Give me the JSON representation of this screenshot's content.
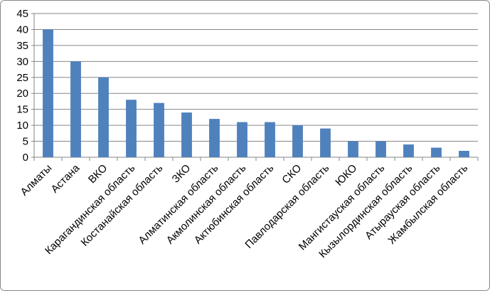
{
  "chart_data": {
    "type": "bar",
    "categories": [
      "Алматы",
      "Астана",
      "ВКО",
      "Карагандинская область",
      "Костанайская область",
      "ЗКО",
      "Алматинская область",
      "Акмолинская область",
      "Актюбинская область",
      "СКО",
      "Павлодарская область",
      "ЮКО",
      "Мангистауская область",
      "Кызылординская область",
      "Атырауская область",
      "Жамбылская область"
    ],
    "values": [
      40,
      30,
      25,
      18,
      17,
      14,
      12,
      11,
      11,
      10,
      9,
      5,
      5,
      4,
      3,
      2
    ],
    "color": "#4f81bd",
    "ylim": [
      0,
      45
    ],
    "yticks": [
      0,
      5,
      10,
      15,
      20,
      25,
      30,
      35,
      40,
      45
    ],
    "grid": true
  }
}
